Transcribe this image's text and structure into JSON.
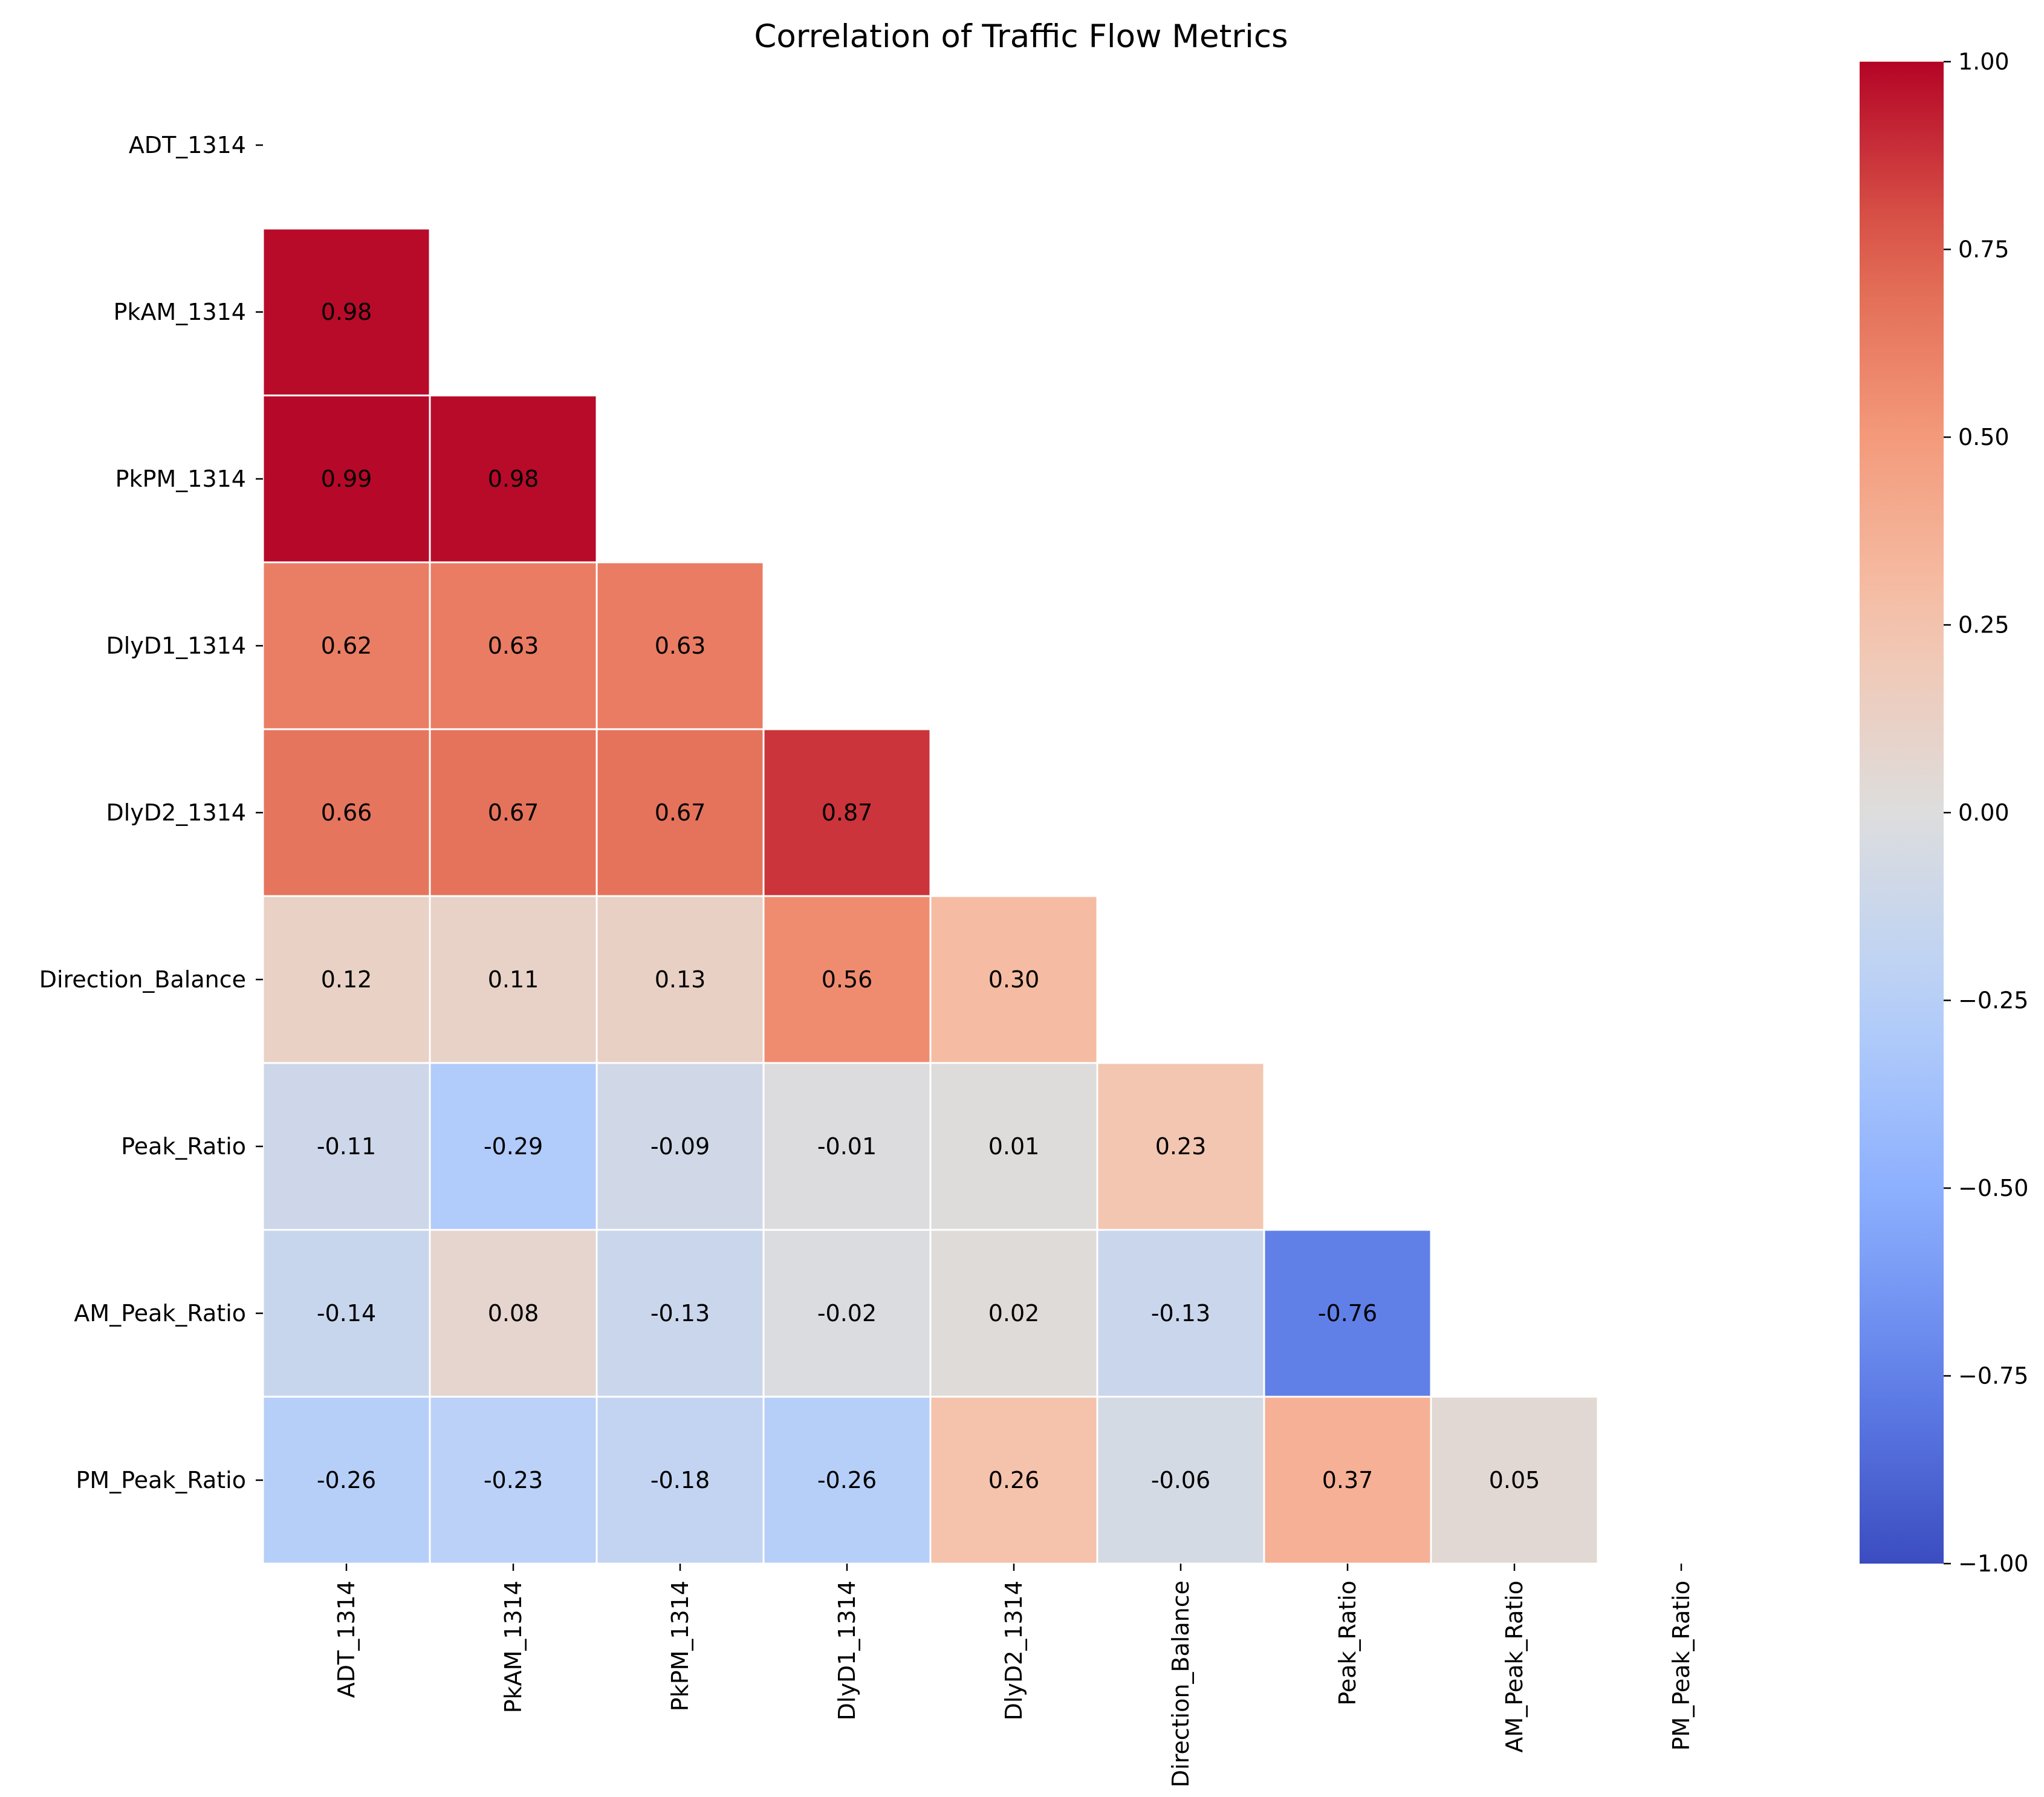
{
  "chart_data": {
    "type": "heatmap",
    "title": "Correlation of Traffic Flow Metrics",
    "xlabel": "",
    "ylabel": "",
    "labels": [
      "ADT_1314",
      "PkAM_1314",
      "PkPM_1314",
      "DlyD1_1314",
      "DlyD2_1314",
      "Direction_Balance",
      "Peak_Ratio",
      "AM_Peak_Ratio",
      "PM_Peak_Ratio"
    ],
    "mask": "upper-triangle-including-diagonal",
    "matrix": [
      [
        null,
        null,
        null,
        null,
        null,
        null,
        null,
        null,
        null
      ],
      [
        0.98,
        null,
        null,
        null,
        null,
        null,
        null,
        null,
        null
      ],
      [
        0.99,
        0.98,
        null,
        null,
        null,
        null,
        null,
        null,
        null
      ],
      [
        0.62,
        0.63,
        0.63,
        null,
        null,
        null,
        null,
        null,
        null
      ],
      [
        0.66,
        0.67,
        0.67,
        0.87,
        null,
        null,
        null,
        null,
        null
      ],
      [
        0.12,
        0.11,
        0.13,
        0.56,
        0.3,
        null,
        null,
        null,
        null
      ],
      [
        -0.11,
        -0.29,
        -0.09,
        -0.01,
        0.01,
        0.23,
        null,
        null,
        null
      ],
      [
        -0.14,
        0.08,
        -0.13,
        -0.02,
        0.02,
        -0.13,
        -0.76,
        null,
        null
      ],
      [
        -0.26,
        -0.23,
        -0.18,
        -0.26,
        0.26,
        -0.06,
        0.37,
        0.05,
        null
      ]
    ],
    "colormap": "coolwarm",
    "vmin": -1,
    "vmax": 1,
    "colorbar_ticks": [
      "1.00",
      "0.75",
      "0.50",
      "0.25",
      "0.00",
      "−0.25",
      "−0.50",
      "−0.75",
      "−1.00"
    ],
    "annotation_format": "0.00",
    "grid": false,
    "legend": "colorbar-right"
  }
}
